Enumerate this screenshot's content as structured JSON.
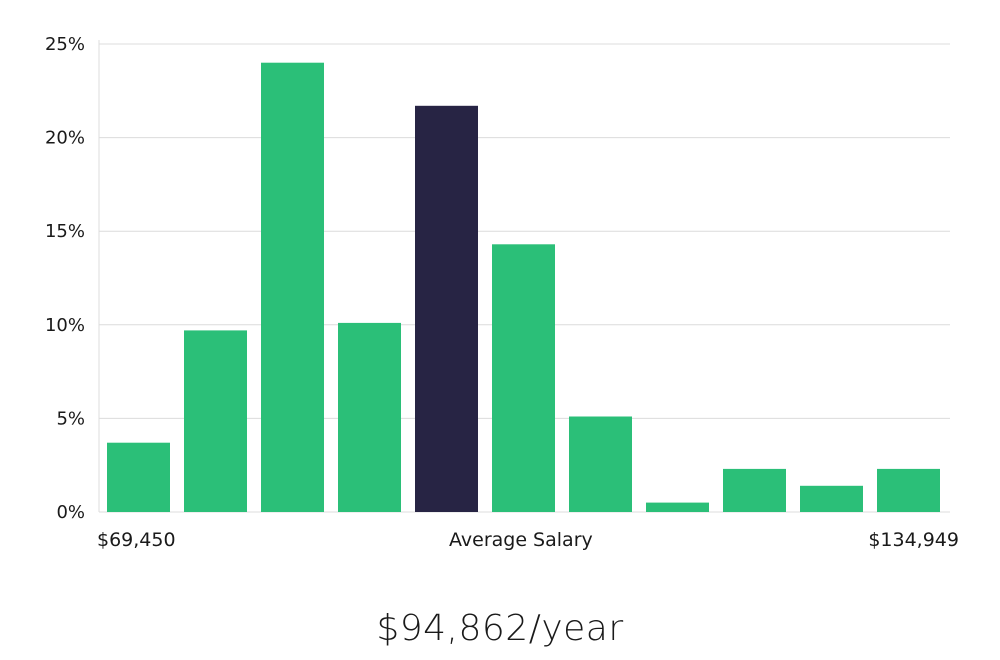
{
  "chart_data": {
    "type": "bar",
    "categories": [
      "1",
      "2",
      "3",
      "4",
      "5",
      "6",
      "7",
      "8",
      "9",
      "10",
      "11"
    ],
    "values": [
      3.7,
      9.7,
      24.0,
      10.1,
      21.7,
      14.3,
      5.1,
      0.5,
      2.3,
      1.4,
      2.3
    ],
    "highlight_index": 4,
    "ylim": [
      0,
      25
    ],
    "yticks": [
      0,
      5,
      10,
      15,
      20,
      25
    ],
    "ytick_labels": [
      "0%",
      "5%",
      "10%",
      "15%",
      "20%",
      "25%"
    ],
    "grid": true,
    "colors": {
      "bar": "#2bbf78",
      "highlight": "#272444",
      "grid": "#dcdcdc"
    }
  },
  "labels": {
    "min": "$69,450",
    "center": "Average Salary",
    "max": "$134,949"
  },
  "average_salary": "$94,862/year"
}
